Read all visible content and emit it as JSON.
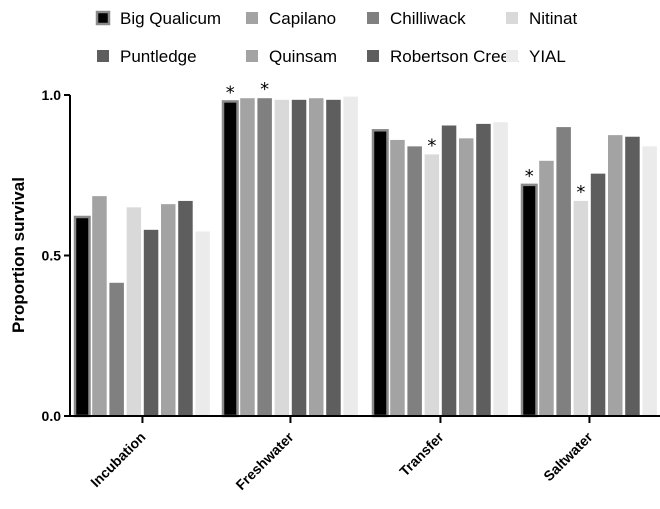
{
  "chart_data": {
    "type": "bar",
    "ylabel": "Proportion survival",
    "xlabel": "",
    "ylim": [
      0,
      1
    ],
    "yticks": [
      "0.0",
      "0.5",
      "1.0"
    ],
    "categories": [
      "Incubation",
      "Freshwater",
      "Transfer",
      "Saltwater"
    ],
    "legend_position": "top",
    "significance_marker": "*",
    "series": [
      {
        "name": "Big Qualicum",
        "color": "#000000",
        "values": [
          0.62,
          0.98,
          0.89,
          0.72
        ],
        "significant": [
          false,
          true,
          false,
          true
        ]
      },
      {
        "name": "Capilano",
        "color": "#a3a3a3",
        "values": [
          0.685,
          0.99,
          0.86,
          0.795
        ],
        "significant": [
          false,
          false,
          false,
          false
        ]
      },
      {
        "name": "Chilliwack",
        "color": "#808080",
        "values": [
          0.415,
          0.99,
          0.84,
          0.9
        ],
        "significant": [
          false,
          true,
          false,
          false
        ]
      },
      {
        "name": "Nitinat",
        "color": "#d9d9d9",
        "values": [
          0.65,
          0.985,
          0.815,
          0.67
        ],
        "significant": [
          false,
          false,
          true,
          true
        ]
      },
      {
        "name": "Puntledge",
        "color": "#5e5e5e",
        "values": [
          0.58,
          0.985,
          0.905,
          0.755
        ],
        "significant": [
          false,
          false,
          false,
          false
        ]
      },
      {
        "name": "Quinsam",
        "color": "#a3a3a3",
        "values": [
          0.66,
          0.99,
          0.865,
          0.875
        ],
        "significant": [
          false,
          false,
          false,
          false
        ]
      },
      {
        "name": "Robertson Creek",
        "color": "#5e5e5e",
        "values": [
          0.67,
          0.985,
          0.91,
          0.87
        ],
        "significant": [
          false,
          false,
          false,
          false
        ]
      },
      {
        "name": "YIAL",
        "color": "#ebebeb",
        "values": [
          0.575,
          0.995,
          0.915,
          0.84
        ],
        "significant": [
          false,
          false,
          false,
          false
        ]
      }
    ]
  }
}
